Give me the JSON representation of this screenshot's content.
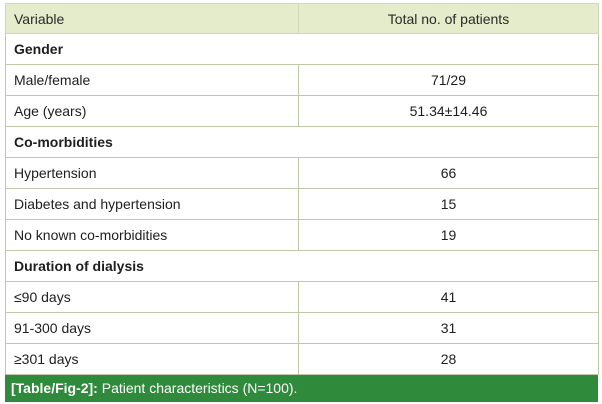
{
  "table": {
    "header": {
      "variable": "Variable",
      "total": "Total no. of patients"
    },
    "sections": [
      {
        "title": "Gender",
        "rows": [
          {
            "label": "Male/female",
            "value": "71/29"
          },
          {
            "label": "Age (years)",
            "value": "51.34±14.46"
          }
        ]
      },
      {
        "title": "Co-morbidities",
        "rows": [
          {
            "label": "Hypertension",
            "value": "66"
          },
          {
            "label": "Diabetes and hypertension",
            "value": "15"
          },
          {
            "label": "No known co-morbidities",
            "value": "19"
          }
        ]
      },
      {
        "title": "Duration of dialysis",
        "rows": [
          {
            "label": "≤90 days",
            "value": "41"
          },
          {
            "label": "91-300 days",
            "value": "31"
          },
          {
            "label": "≥301 days",
            "value": "28"
          }
        ]
      }
    ]
  },
  "caption": {
    "ref": "[Table/Fig-2]:",
    "text": "Patient characteristics (N=100)."
  }
}
